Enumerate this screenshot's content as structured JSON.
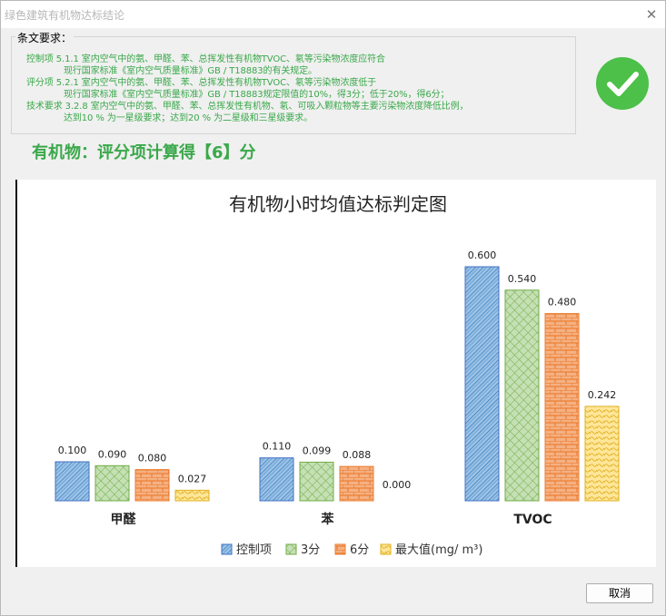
{
  "window": {
    "title": "绿色建筑有机物达标结论"
  },
  "requirements": {
    "legend": "条文要求：",
    "lines": [
      "控制项   5.1.1 室内空气中的氨、甲醛、苯、总挥发性有机物TVOC、氡等污染物浓度应符合",
      "现行国家标准《室内空气质量标准》GB / T18883的有关规定。",
      "评分项   5.2.1 室内空气中的氨、甲醛、苯、总挥发性有机物TVOC、氡等污染物浓度低于",
      "现行国家标准《室内空气质量标准》GB / T18883规定限值的10%，得3分；低于20%，得6分；",
      "技术要求 3.2.8 室内空气中的氨、甲醛、苯、总挥发性有机物、氡、可吸入颗粒物等主要污染物浓度降低比例，",
      "达到10 % 为一星级要求；达到20 % 为二星级和三星级要求。"
    ]
  },
  "status_icon": "check-circle-icon",
  "score_text": "有机物：评分项计算得【6】分",
  "chart_data": {
    "type": "bar",
    "title": "有机物小时均值达标判定图",
    "categories": [
      "甲醛",
      "苯",
      "TVOC"
    ],
    "series": [
      {
        "name": "控制项",
        "values": [
          0.1,
          0.11,
          0.6
        ],
        "labels": [
          "0.100",
          "0.110",
          "0.600"
        ],
        "color": "#9dc3e6",
        "stroke": "#4472c4",
        "pattern": "hatch-diag"
      },
      {
        "name": "3分",
        "values": [
          0.09,
          0.099,
          0.54
        ],
        "labels": [
          "0.090",
          "0.099",
          "0.540"
        ],
        "color": "#c5e0b4",
        "stroke": "#70ad47",
        "pattern": "crosshatch"
      },
      {
        "name": "6分",
        "values": [
          0.08,
          0.088,
          0.48
        ],
        "labels": [
          "0.080",
          "0.088",
          "0.480"
        ],
        "color": "#f4b183",
        "stroke": "#ed7d31",
        "pattern": "brick"
      },
      {
        "name": "最大值(mg/ m³)",
        "values": [
          0.027,
          0.0,
          0.242
        ],
        "labels": [
          "0.027",
          "0.000",
          "0.242"
        ],
        "color": "#ffe699",
        "stroke": "#e0b020",
        "pattern": "wave"
      }
    ],
    "ylim": [
      0,
      0.6
    ],
    "legend_position": "bottom",
    "grid": false
  },
  "buttons": {
    "cancel": "取消"
  }
}
